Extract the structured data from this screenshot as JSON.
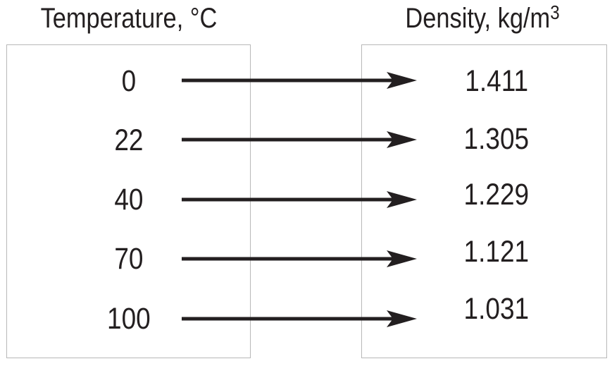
{
  "left_header": "Temperature, °C",
  "right_header": {
    "text": "Density, kg/m",
    "superscript": "3"
  },
  "rows": [
    {
      "temperature": "0",
      "density": "1.411"
    },
    {
      "temperature": "22",
      "density": "1.305"
    },
    {
      "temperature": "40",
      "density": "1.229"
    },
    {
      "temperature": "70",
      "density": "1.121"
    },
    {
      "temperature": "100",
      "density": "1.031"
    }
  ],
  "colors": {
    "text": "#231f20",
    "arrow": "#231f20",
    "box_border": "#b8b8b8"
  }
}
